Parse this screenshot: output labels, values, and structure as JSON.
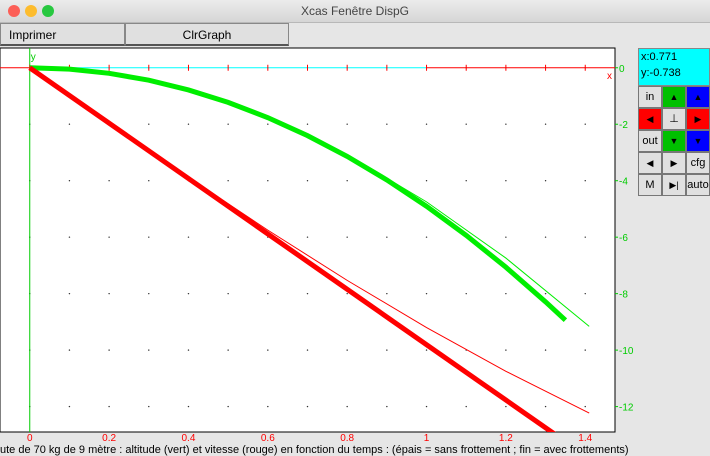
{
  "window": {
    "title": "Xcas Fenêtre DispG"
  },
  "toolbar": {
    "print_label": "Imprimer",
    "clear_label": "ClrGraph"
  },
  "side_panel": {
    "x_readout": "x:0.771",
    "y_readout": "y:-0.738",
    "buttons": [
      {
        "label": "in",
        "color": "#e0e0e0",
        "icon": ""
      },
      {
        "label": "",
        "color": "#00c000",
        "icon": "arrow-up-icon"
      },
      {
        "label": "",
        "color": "#0000ff",
        "icon": "arrow-up-icon"
      },
      {
        "label": "",
        "color": "#ff0000",
        "icon": "arrow-left-icon"
      },
      {
        "label": "⊥",
        "color": "#e0e0e0",
        "icon": "axes-icon"
      },
      {
        "label": "",
        "color": "#ff0000",
        "icon": "arrow-right-icon"
      },
      {
        "label": "out",
        "color": "#e0e0e0",
        "icon": ""
      },
      {
        "label": "",
        "color": "#00c000",
        "icon": "arrow-down-icon"
      },
      {
        "label": "",
        "color": "#0000ff",
        "icon": "arrow-down-icon"
      },
      {
        "label": "",
        "color": "#e0e0e0",
        "icon": "arrow-left-icon"
      },
      {
        "label": "",
        "color": "#e0e0e0",
        "icon": "arrow-right-icon"
      },
      {
        "label": "cfg",
        "color": "#e0e0e0",
        "icon": ""
      },
      {
        "label": "M",
        "color": "#e0e0e0",
        "icon": ""
      },
      {
        "label": "",
        "color": "#e0e0e0",
        "icon": "step-icon"
      },
      {
        "label": "auto",
        "color": "#e0e0e0",
        "icon": ""
      }
    ]
  },
  "caption": "ute de 70 kg de 9 mètre : altitude (vert) et vitesse (rouge) en fonction du temps : (épais = sans frottement ; fin = avec frottements)",
  "chart_data": {
    "type": "line",
    "xlabel": "x",
    "ylabel": "y",
    "xlim": [
      -0.075,
      1.475
    ],
    "ylim": [
      -12.9,
      0.7
    ],
    "xticks": [
      "0",
      "0.2",
      "0.4",
      "0.6",
      "0.8",
      "1",
      "1.2",
      "1.4"
    ],
    "yticks": [
      "0",
      "-2",
      "-4",
      "-6",
      "-8",
      "-10",
      "-12"
    ],
    "grid": true,
    "series": [
      {
        "color": "#00ee00",
        "thick": true,
        "x": [
          0,
          0.1,
          0.2,
          0.3,
          0.4,
          0.5,
          0.6,
          0.7,
          0.8,
          0.9,
          1.0,
          1.1,
          1.2,
          1.3,
          1.35
        ],
        "y": [
          0,
          -0.049,
          -0.196,
          -0.441,
          -0.785,
          -1.226,
          -1.766,
          -2.403,
          -3.139,
          -3.973,
          -4.905,
          -5.935,
          -7.063,
          -8.29,
          -8.94
        ]
      },
      {
        "color": "#00ee00",
        "thick": false,
        "x": [
          0,
          0.2,
          0.4,
          0.6,
          0.8,
          1.0,
          1.2,
          1.41
        ],
        "y": [
          0,
          -0.196,
          -0.78,
          -1.745,
          -3.07,
          -4.75,
          -6.74,
          -9.16
        ]
      },
      {
        "color": "#ff0000",
        "thick": true,
        "x": [
          0,
          1.35
        ],
        "y": [
          0,
          -13.24
        ]
      },
      {
        "color": "#ff0000",
        "thick": false,
        "x": [
          0,
          0.2,
          0.4,
          0.6,
          0.8,
          1.0,
          1.2,
          1.41
        ],
        "y": [
          0,
          -1.96,
          -3.88,
          -5.75,
          -7.53,
          -9.2,
          -10.75,
          -12.23
        ]
      }
    ]
  }
}
